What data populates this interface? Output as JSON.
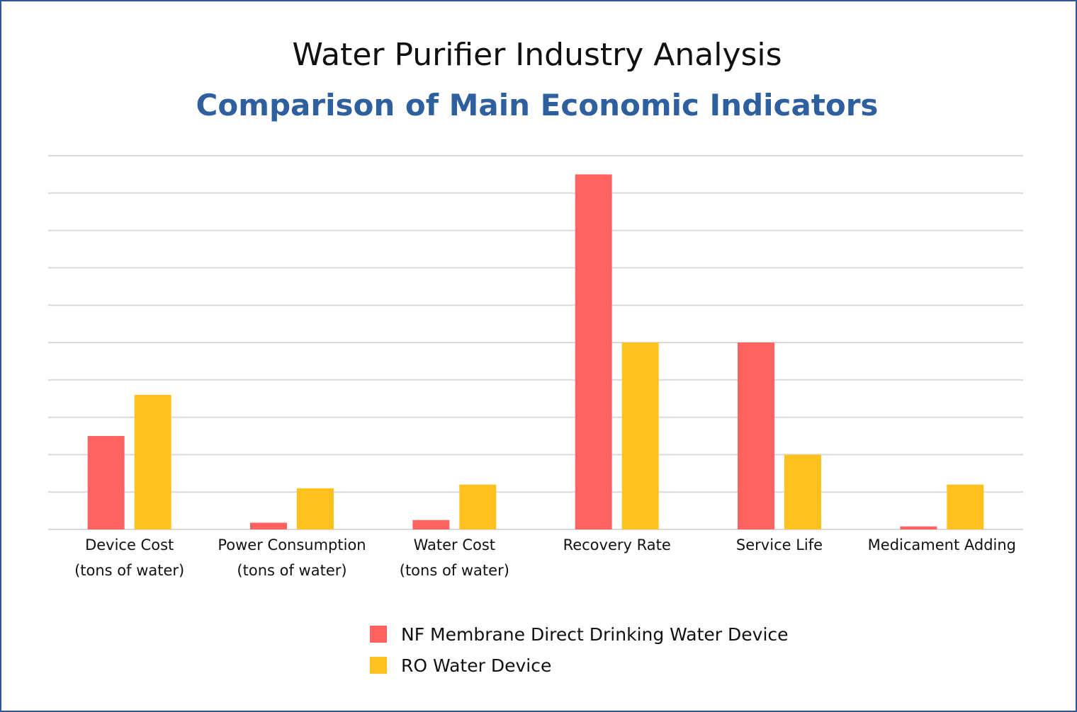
{
  "header": {
    "title": "Water Purifier Industry Analysis",
    "subtitle": "Comparison of Main Economic Indicators"
  },
  "colors": {
    "nf": "#ff6361",
    "ro": "#ffc11f",
    "grid": "#d9d9d9",
    "frame": "#2f5597",
    "subtitle": "#2e5f9e"
  },
  "chart_data": {
    "type": "bar",
    "title": "Water Purifier Industry Analysis",
    "subtitle": "Comparison of Main Economic Indicators",
    "xlabel": "",
    "ylabel": "",
    "ylim": [
      0,
      100
    ],
    "grid": true,
    "y_tick_labels_shown": false,
    "legend_position": "bottom-center",
    "categories": [
      [
        "Device Cost",
        "(tons of water)"
      ],
      [
        "Power Consumption",
        "(tons of water)"
      ],
      [
        "Water Cost",
        "(tons of water)"
      ],
      [
        "Recovery Rate"
      ],
      [
        "Service Life"
      ],
      [
        "Medicament Adding"
      ]
    ],
    "series": [
      {
        "name": "NF Membrane Direct Drinking Water Device",
        "color": "#ff6361",
        "values": [
          25,
          1.8,
          2.5,
          95,
          50,
          0.8
        ]
      },
      {
        "name": "RO Water Device",
        "color": "#ffc11f",
        "values": [
          36,
          11,
          12,
          50,
          20,
          12
        ]
      }
    ]
  }
}
